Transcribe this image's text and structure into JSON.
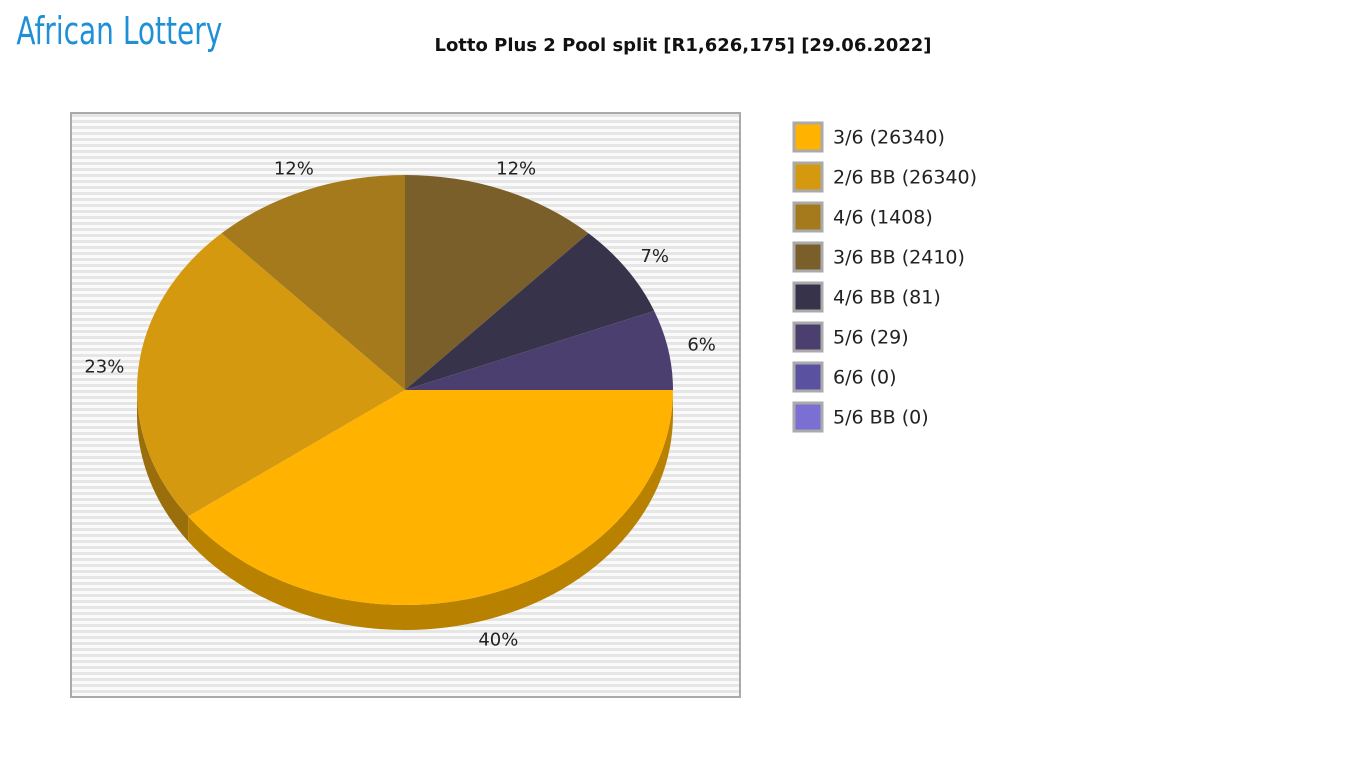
{
  "logo": "African Lottery",
  "chart_data": {
    "type": "pie",
    "title": "Lotto Plus 2 Pool split [R1,626,175] [29.06.2022]",
    "categories": [
      "3/6 (26340)",
      "2/6 BB (26340)",
      "4/6 (1408)",
      "3/6 BB (2410)",
      "4/6 BB (81)",
      "5/6 (29)",
      "6/6 (0)",
      "5/6 BB (0)"
    ],
    "values": [
      40,
      23,
      12,
      12,
      7,
      6,
      0,
      0
    ],
    "value_labels": [
      "40%",
      "23%",
      "12%",
      "12%",
      "7%",
      "6%",
      null,
      null
    ],
    "colors": [
      "#ffb300",
      "#d4990f",
      "#a57a1c",
      "#7a5f2a",
      "#37334a",
      "#4a3f6e",
      "#5a52a0",
      "#7b6fd4"
    ],
    "legend": "right"
  }
}
